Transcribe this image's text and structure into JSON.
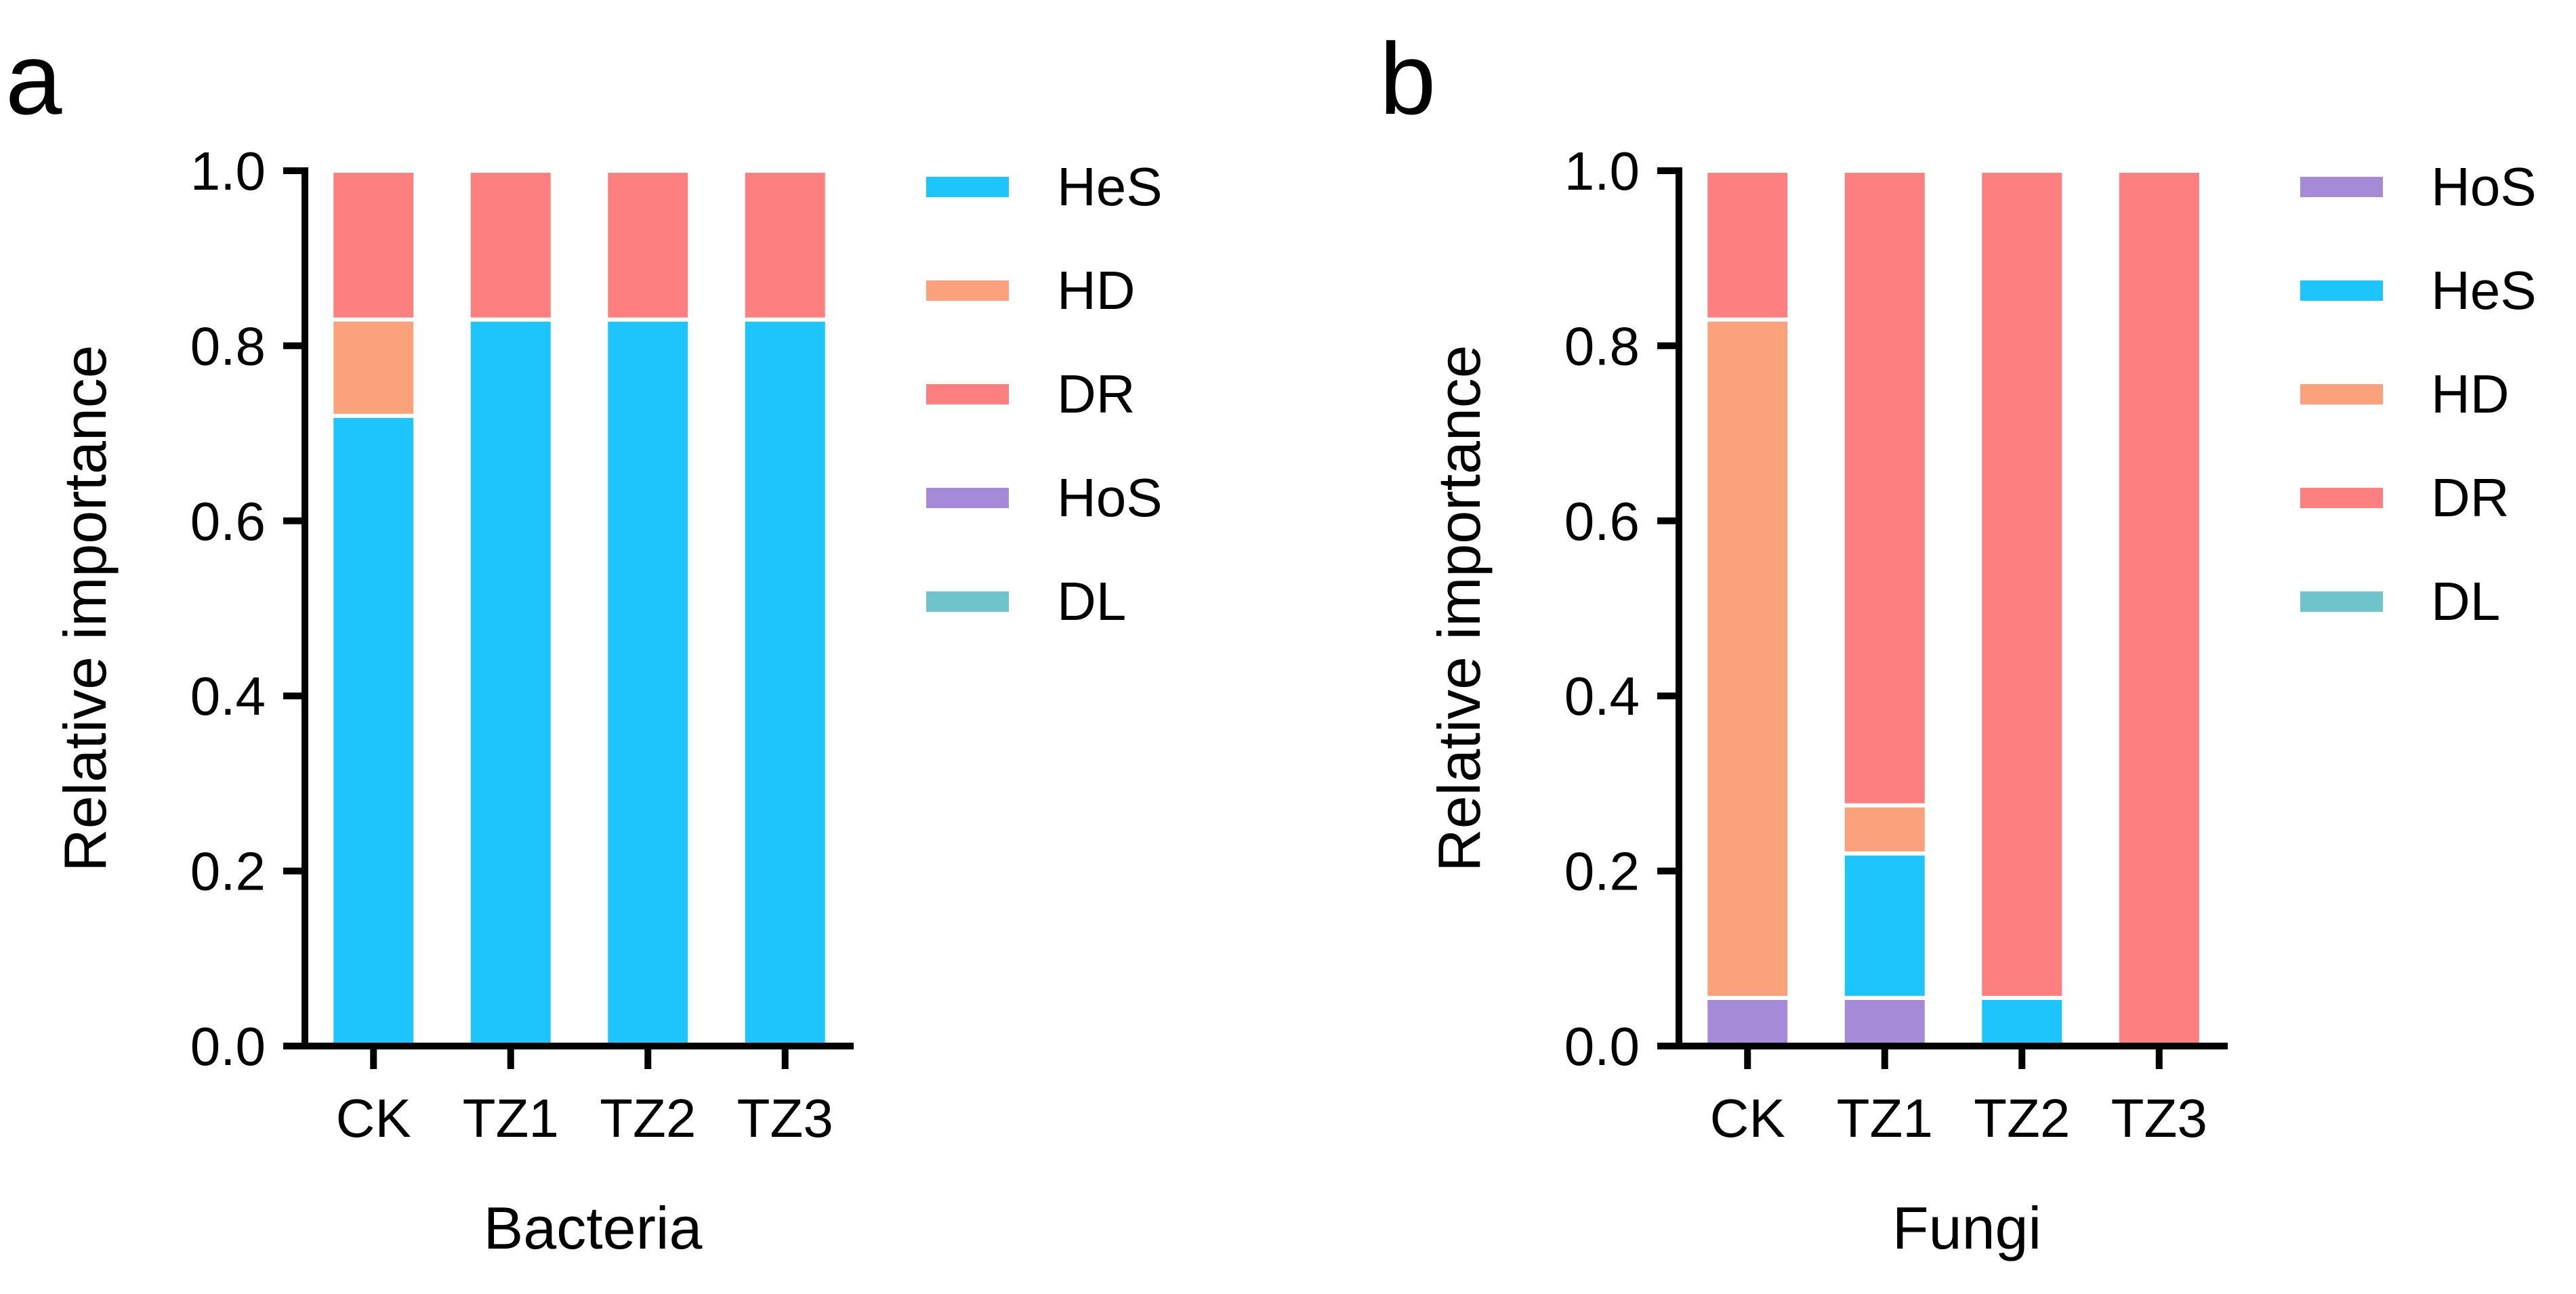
{
  "chart_data": [
    {
      "type": "bar",
      "stacked": true,
      "panel_label": "a",
      "title": "",
      "xlabel": "Bacteria",
      "ylabel": "Relative importance",
      "ylim": [
        0,
        1.0
      ],
      "yticks": [
        "0.0",
        "0.2",
        "0.4",
        "0.6",
        "0.8",
        "1.0"
      ],
      "categories": [
        "CK",
        "TZ1",
        "TZ2",
        "TZ3"
      ],
      "series": [
        {
          "name": "HeS",
          "color": "#1ec5fd",
          "values": [
            0.72,
            0.83,
            0.83,
            0.83
          ]
        },
        {
          "name": "HD",
          "color": "#fba27d",
          "values": [
            0.11,
            0.0,
            0.0,
            0.0
          ]
        },
        {
          "name": "DR",
          "color": "#fd7f7f",
          "values": [
            0.17,
            0.17,
            0.17,
            0.17
          ]
        },
        {
          "name": "HoS",
          "color": "#a58ad8",
          "values": [
            0.0,
            0.0,
            0.0,
            0.0
          ]
        },
        {
          "name": "DL",
          "color": "#6fc3cb",
          "values": [
            0.0,
            0.0,
            0.0,
            0.0
          ]
        }
      ],
      "stack_order": [
        "HoS",
        "HeS",
        "HD",
        "DR",
        "DL"
      ],
      "legend": [
        "HeS",
        "HD",
        "DR",
        "HoS",
        "DL"
      ],
      "legend_position": "right"
    },
    {
      "type": "bar",
      "stacked": true,
      "panel_label": "b",
      "title": "",
      "xlabel": "Fungi",
      "ylabel": "Relative importance",
      "ylim": [
        0,
        1.0
      ],
      "yticks": [
        "0.0",
        "0.2",
        "0.4",
        "0.6",
        "0.8",
        "1.0"
      ],
      "categories": [
        "CK",
        "TZ1",
        "TZ2",
        "TZ3"
      ],
      "series": [
        {
          "name": "HoS",
          "color": "#a58ad8",
          "values": [
            0.055,
            0.055,
            0.0,
            0.0
          ]
        },
        {
          "name": "HeS",
          "color": "#1ec5fd",
          "values": [
            0.0,
            0.165,
            0.055,
            0.0
          ]
        },
        {
          "name": "HD",
          "color": "#fba27d",
          "values": [
            0.775,
            0.055,
            0.0,
            0.0
          ]
        },
        {
          "name": "DR",
          "color": "#fd7f7f",
          "values": [
            0.17,
            0.725,
            0.945,
            1.0
          ]
        },
        {
          "name": "DL",
          "color": "#6fc3cb",
          "values": [
            0.0,
            0.0,
            0.0,
            0.0
          ]
        }
      ],
      "stack_order": [
        "HoS",
        "HeS",
        "HD",
        "DR",
        "DL"
      ],
      "legend": [
        "HoS",
        "HeS",
        "HD",
        "DR",
        "DL"
      ],
      "legend_position": "right"
    }
  ]
}
